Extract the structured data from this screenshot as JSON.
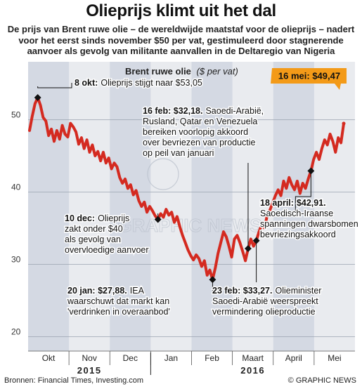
{
  "header": {
    "title": "Olieprijs klimt uit het dal",
    "subtitle": "De prijs van Brent ruwe olie – de wereldwijde maatstaf voor de olieprijs – nadert voor het eerst sinds november $50 per vat, gestimuleerd door stagnerende aanvoer als gevolg van militante aanvallen in de Deltaregio van Nigeria"
  },
  "chart_data": {
    "type": "line",
    "title": "Brent ruwe olie",
    "unit": "($ per vat)",
    "ylim": [
      18,
      58
    ],
    "yticks": [
      20,
      30,
      40,
      50
    ],
    "grid": true,
    "months": [
      "Okt",
      "Nov",
      "Dec",
      "Jan",
      "Feb",
      "Maart",
      "April",
      "Mei"
    ],
    "years": [
      "2015",
      "2016"
    ],
    "series": [
      {
        "values": [
          48.5,
          50.5,
          52.2,
          53.05,
          52.0,
          50.3,
          49.8,
          47.8,
          48.7,
          47.0,
          48.5,
          47.3,
          49.2,
          48.0,
          47.6,
          49.5,
          49.0,
          48.3,
          46.6,
          47.5,
          46.0,
          47.2,
          45.5,
          46.5,
          45.0,
          45.6,
          44.3,
          45.5,
          44.0,
          44.7,
          43.2,
          44.0,
          43.5,
          42.0,
          41.2,
          41.8,
          40.5,
          41.0,
          39.6,
          40.2,
          38.8,
          38.0,
          38.6,
          37.2,
          38.0,
          37.4,
          36.7,
          36.2,
          37.0,
          36.5,
          37.6,
          36.8,
          37.2,
          35.8,
          36.6,
          35.2,
          34.0,
          33.0,
          32.0,
          31.2,
          30.6,
          31.3,
          30.8,
          29.7,
          30.5,
          28.5,
          29.2,
          27.88,
          29.5,
          31.5,
          33.0,
          34.5,
          33.8,
          32.5,
          31.0,
          33.5,
          34.0,
          33.0,
          31.8,
          30.5,
          32.18,
          33.5,
          32.5,
          33.27,
          34.5,
          35.5,
          35.0,
          36.8,
          37.5,
          38.5,
          39.5,
          40.3,
          39.5,
          41.5,
          40.5,
          42.0,
          41.0,
          40.3,
          41.5,
          39.8,
          41.2,
          40.5,
          41.8,
          42.91,
          44.5,
          45.5,
          44.5,
          46.0,
          47.2,
          46.5,
          48.0,
          47.0,
          45.5,
          47.5,
          46.8,
          49.47
        ]
      }
    ],
    "annotations": [
      {
        "index": 3,
        "label": "8 okt:",
        "text": "Olieprijs stijgt naar $53,05"
      },
      {
        "index": 47,
        "label": "10 dec:",
        "text": "Olieprijs zakt onder $40 als gevolg van overvloedige aanvoer"
      },
      {
        "index": 67,
        "label": "20 jan: $27,88.",
        "text": "IEA waarschuwt dat markt kan 'verdrinken in overaanbod'"
      },
      {
        "index": 80,
        "label": "16 feb: $32,18.",
        "text": "Saoedi-Arabië, Rusland, Qatar en Venezuela bereiken voorlopig akkoord over bevriezen van productie op peil van januari"
      },
      {
        "index": 83,
        "label": "23 feb: $33,27.",
        "text": "Olieminister Saoedi-Arabië weerspreekt vermindering olieproductie"
      },
      {
        "index": 103,
        "label": "18 april: $42,91.",
        "text": "Saoedisch-Iraanse spanningen dwarsbomen bevriezingsakkoord"
      },
      {
        "index": 115,
        "label": "16 mei: $49,47",
        "text": ""
      }
    ]
  },
  "labels": {
    "a1": [
      "8 okt:",
      "Olieprijs stijgt naar $53,05"
    ],
    "a2": [
      "16 feb: $32,18.",
      "Saoedi-Arabië,",
      "Rusland, Qatar en Venezuela",
      "bereiken voorlopig akkoord",
      "over bevriezen van productie",
      "op peil van januari"
    ],
    "a3": [
      "10 dec:",
      "Olieprijs",
      "zakt onder $40",
      "als gevolg van",
      "overvloedige aanvoer"
    ],
    "a4": [
      "18 april:",
      "$42,91.",
      "Saoedisch-Iraanse",
      "spanningen dwarsbomen",
      "bevriezingsakkoord"
    ],
    "a5": [
      "20 jan: $27,88.",
      "IEA",
      "waarschuwt dat markt kan",
      "'verdrinken in overaanbod'"
    ],
    "a6": [
      "23 feb: $33,27.",
      "Olieminister",
      "Saoedi-Arabië weerspreekt",
      "vermindering olieproductie"
    ],
    "callout": "16 mei: $49,47"
  },
  "watermark": "GRAPHIC NEWS",
  "footer": {
    "source": "Bronnen: Financial Times, Investing.com",
    "credit": "© GRAPHIC NEWS"
  },
  "colors": {
    "line": "#d42a20",
    "callout": "#f39a18",
    "plot_bg": "#e9ebef",
    "column_bg": "#d4d9e3",
    "grid": "#9aa3b0"
  }
}
